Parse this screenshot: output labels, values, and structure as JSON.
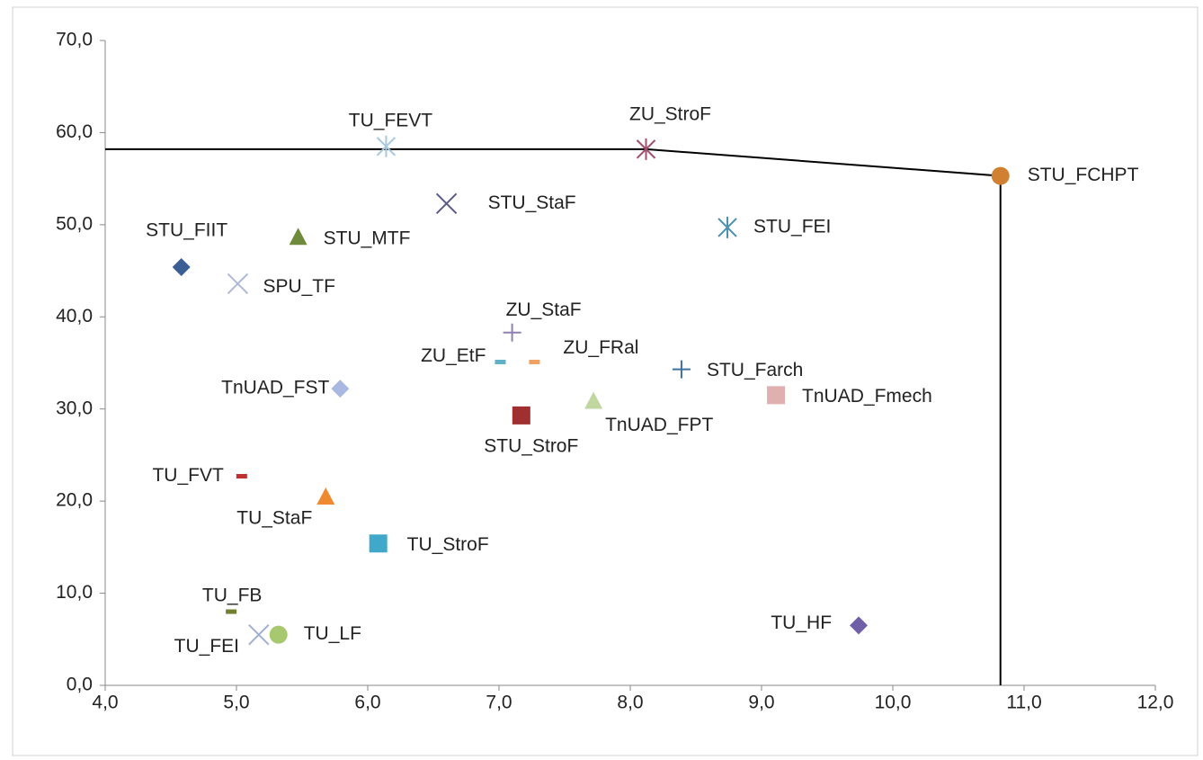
{
  "chart_data": {
    "type": "scatter",
    "xlim": [
      4,
      12
    ],
    "xticks": [
      {
        "value": 4,
        "label": "4,0"
      },
      {
        "value": 5,
        "label": "5,0"
      },
      {
        "value": 6,
        "label": "6,0"
      },
      {
        "value": 7,
        "label": "7,0"
      },
      {
        "value": 8,
        "label": "8,0"
      },
      {
        "value": 9,
        "label": "9,0"
      },
      {
        "value": 10,
        "label": "10,0"
      },
      {
        "value": 11,
        "label": "11,0"
      },
      {
        "value": 12,
        "label": "12,0"
      }
    ],
    "ylim": [
      0,
      70
    ],
    "yticks": [
      {
        "value": 0,
        "label": "0,0"
      },
      {
        "value": 10,
        "label": "10,0"
      },
      {
        "value": 20,
        "label": "20,0"
      },
      {
        "value": 30,
        "label": "30,0"
      },
      {
        "value": 40,
        "label": "40,0"
      },
      {
        "value": 50,
        "label": "50,0"
      },
      {
        "value": 60,
        "label": "60,0"
      },
      {
        "value": 70,
        "label": "70,0"
      }
    ],
    "points": [
      {
        "name": "TU_FEVT",
        "x": 6.14,
        "y": 58.5,
        "color": "#a8c8e0",
        "marker": "star"
      },
      {
        "name": "ZU_StroF",
        "x": 8.12,
        "y": 58.2,
        "color": "#a05070",
        "marker": "star"
      },
      {
        "name": "STU_FCHPT",
        "x": 10.82,
        "y": 55.3,
        "color": "#d08030",
        "marker": "circle"
      },
      {
        "name": "STU_StaF",
        "x": 6.6,
        "y": 52.3,
        "color": "#5a5a8a",
        "marker": "x"
      },
      {
        "name": "STU_FEI",
        "x": 8.74,
        "y": 49.7,
        "color": "#4a90b0",
        "marker": "star"
      },
      {
        "name": "STU_MTF",
        "x": 5.47,
        "y": 48.6,
        "color": "#6e8a3a",
        "marker": "triangle"
      },
      {
        "name": "STU_FIIT",
        "x": 4.58,
        "y": 45.4,
        "color": "#3b5e95",
        "marker": "diamond"
      },
      {
        "name": "SPU_TF",
        "x": 5.01,
        "y": 43.6,
        "color": "#b0b8d8",
        "marker": "x"
      },
      {
        "name": "ZU_StaF",
        "x": 7.1,
        "y": 38.3,
        "color": "#9080b0",
        "marker": "plus"
      },
      {
        "name": "ZU_EtF",
        "x": 7.01,
        "y": 35.1,
        "color": "#60b0c8",
        "marker": "dash"
      },
      {
        "name": "ZU_FRal",
        "x": 7.27,
        "y": 35.1,
        "color": "#f0a060",
        "marker": "dash"
      },
      {
        "name": "STU_Farch",
        "x": 8.39,
        "y": 34.3,
        "color": "#4070a0",
        "marker": "plus"
      },
      {
        "name": "TnUAD_FST",
        "x": 5.79,
        "y": 32.2,
        "color": "#a8b8e0",
        "marker": "diamond"
      },
      {
        "name": "TnUAD_Fmech",
        "x": 9.11,
        "y": 31.5,
        "color": "#e0b0b0",
        "marker": "square"
      },
      {
        "name": "TnUAD_FPT",
        "x": 7.72,
        "y": 30.8,
        "color": "#c0d8a0",
        "marker": "triangle"
      },
      {
        "name": "STU_StroF",
        "x": 7.17,
        "y": 29.3,
        "color": "#a03030",
        "marker": "square"
      },
      {
        "name": "TU_FVT",
        "x": 5.04,
        "y": 22.7,
        "color": "#c03030",
        "marker": "dash"
      },
      {
        "name": "TU_StaF",
        "x": 5.68,
        "y": 20.4,
        "color": "#f08a30",
        "marker": "triangle"
      },
      {
        "name": "TU_StroF",
        "x": 6.08,
        "y": 15.4,
        "color": "#40a8c8",
        "marker": "square"
      },
      {
        "name": "TU_FB",
        "x": 4.96,
        "y": 8.0,
        "color": "#708030",
        "marker": "dash"
      },
      {
        "name": "TU_FEI",
        "x": 5.17,
        "y": 5.5,
        "color": "#a0b0d0",
        "marker": "x"
      },
      {
        "name": "TU_LF",
        "x": 5.32,
        "y": 5.5,
        "color": "#a8c870",
        "marker": "circle"
      },
      {
        "name": "TU_HF",
        "x": 9.74,
        "y": 6.5,
        "color": "#7060a8",
        "marker": "diamond"
      }
    ],
    "lines": [
      {
        "color": "#000000",
        "x": [
          4,
          8.12,
          10.82,
          10.82
        ],
        "y": [
          58.2,
          58.2,
          55.3,
          0
        ]
      }
    ]
  }
}
